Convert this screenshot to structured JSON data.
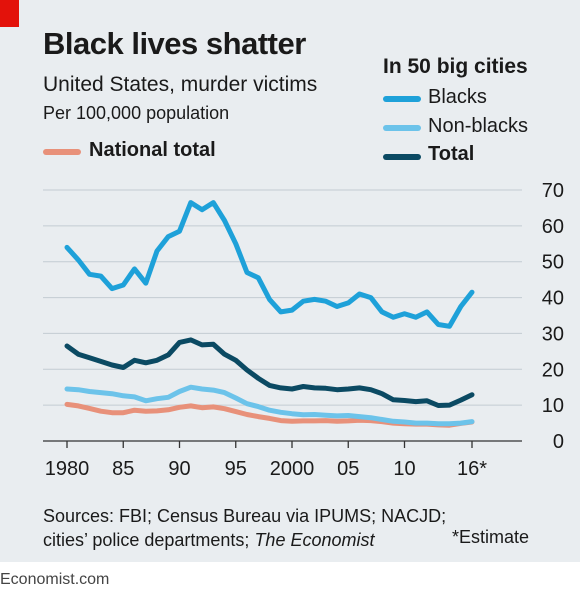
{
  "header": {
    "title": "Black lives shatter",
    "subtitle": "United States, murder victims",
    "units": "Per 100,000 population"
  },
  "legend": {
    "national_label": "National total",
    "group_title": "In 50 big cities",
    "blacks_label": "Blacks",
    "nonblacks_label": "Non-blacks",
    "total_label": "Total"
  },
  "footer": {
    "sources_prefix": "Sources: FBI; Census Bureau via IPUMS; NACJD; cities’ police departments; ",
    "sources_italic": "The Economist",
    "estimate_note": "*Estimate",
    "credit": "Economist.com"
  },
  "colors": {
    "blacks": "#1ea1d9",
    "nonblacks": "#6cc3ea",
    "total": "#0b4a63",
    "national": "#e8917a",
    "accent": "#e3120b",
    "grid": "#c3ccd2",
    "background": "#e9edf0"
  },
  "chart_data": {
    "type": "line",
    "x": [
      1980,
      1981,
      1982,
      1983,
      1984,
      1985,
      1986,
      1987,
      1988,
      1989,
      1990,
      1991,
      1992,
      1993,
      1994,
      1995,
      1996,
      1997,
      1998,
      1999,
      2000,
      2001,
      2002,
      2003,
      2004,
      2005,
      2006,
      2007,
      2008,
      2009,
      2010,
      2011,
      2012,
      2013,
      2014,
      2015,
      2016
    ],
    "series": [
      {
        "name": "Blacks",
        "color": "#1ea1d9",
        "values": [
          54,
          50.5,
          46.5,
          46,
          42.5,
          43.5,
          48,
          44,
          53,
          57,
          58.5,
          66.5,
          64.5,
          66.5,
          61.5,
          55,
          47,
          45.5,
          39.5,
          36,
          36.5,
          39,
          39.5,
          39,
          37.5,
          38.5,
          41,
          40,
          36,
          34.5,
          35.5,
          34.5,
          36,
          32.5,
          32,
          37.5,
          41.5
        ]
      },
      {
        "name": "Non-blacks",
        "color": "#6cc3ea",
        "values": [
          14.5,
          14.3,
          13.8,
          13.5,
          13.2,
          12.6,
          12.3,
          11.2,
          11.8,
          12.2,
          13.8,
          15,
          14.5,
          14.2,
          13.5,
          12,
          10.4,
          9.6,
          8.6,
          8,
          7.6,
          7.3,
          7.4,
          7.2,
          7,
          7.1,
          6.8,
          6.5,
          6,
          5.5,
          5.3,
          5,
          5,
          4.8,
          4.8,
          5,
          5.4
        ]
      },
      {
        "name": "Total",
        "color": "#0b4a63",
        "values": [
          26.5,
          24.2,
          23.2,
          22.2,
          21.2,
          20.5,
          22.5,
          21.8,
          22.5,
          24,
          27.5,
          28.2,
          26.8,
          27,
          24.2,
          22.5,
          19.8,
          17.5,
          15.5,
          14.8,
          14.5,
          15.2,
          14.8,
          14.7,
          14.3,
          14.5,
          14.8,
          14.3,
          13.2,
          11.5,
          11.3,
          11,
          11.2,
          9.9,
          10,
          11.4,
          12.9
        ]
      },
      {
        "name": "National total",
        "color": "#e8917a",
        "values": [
          10.2,
          9.8,
          9.1,
          8.3,
          7.9,
          7.9,
          8.6,
          8.3,
          8.4,
          8.7,
          9.4,
          9.8,
          9.3,
          9.5,
          9,
          8.2,
          7.4,
          6.8,
          6.3,
          5.7,
          5.5,
          5.6,
          5.6,
          5.7,
          5.5,
          5.6,
          5.8,
          5.7,
          5.4,
          5,
          4.8,
          4.7,
          4.7,
          4.5,
          4.4,
          4.9,
          5.3
        ]
      }
    ],
    "ylim": [
      0,
      70
    ],
    "yticks": [
      0,
      10,
      20,
      30,
      40,
      50,
      60,
      70
    ],
    "xticks": [
      {
        "x": 1980,
        "label": "1980"
      },
      {
        "x": 1985,
        "label": "85"
      },
      {
        "x": 1990,
        "label": "90"
      },
      {
        "x": 1995,
        "label": "95"
      },
      {
        "x": 2000,
        "label": "2000"
      },
      {
        "x": 2005,
        "label": "05"
      },
      {
        "x": 2010,
        "label": "10"
      },
      {
        "x": 2016,
        "label": "16*"
      }
    ],
    "grid": true,
    "y_axis_side": "right"
  }
}
